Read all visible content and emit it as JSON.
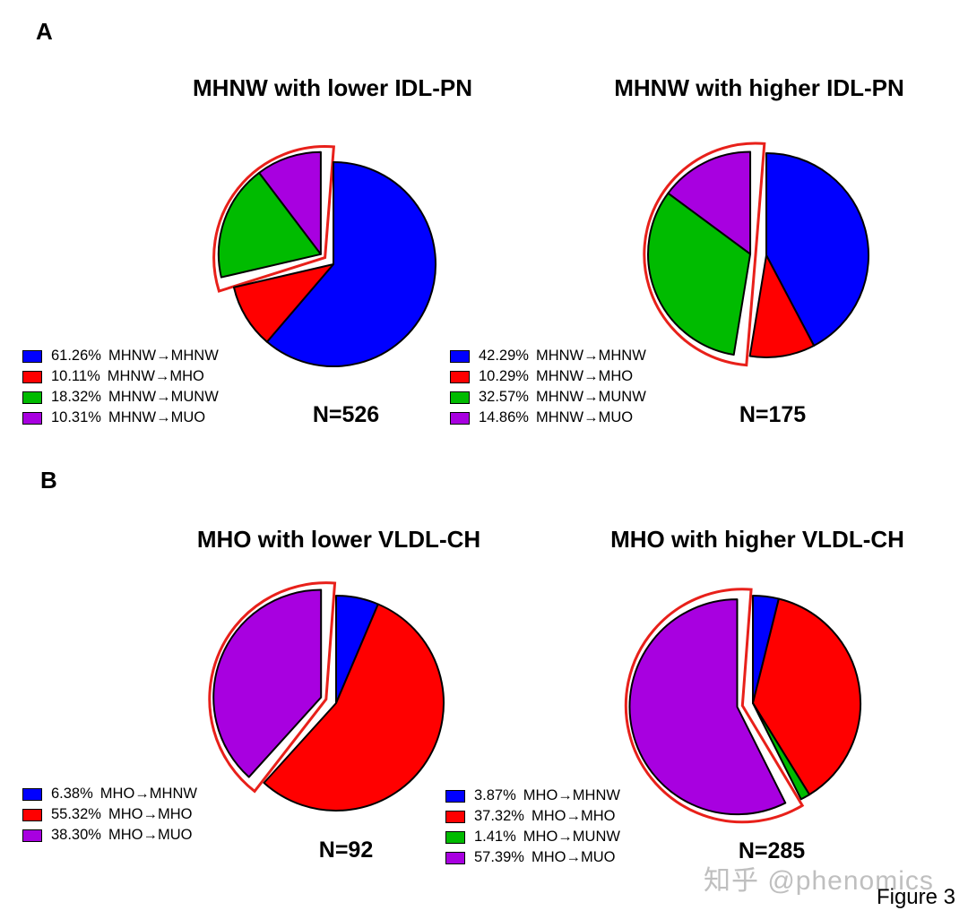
{
  "panels": [
    {
      "label": "A"
    },
    {
      "label": "B"
    }
  ],
  "chart_data": [
    {
      "type": "pie",
      "title": "MHNW with lower IDL-PN",
      "n_label": "N=526",
      "slices": [
        {
          "pct": "61.26%",
          "label": "MHNW→MHNW",
          "value": 61.26,
          "color": "#0000ff",
          "highlighted": false
        },
        {
          "pct": "10.11%",
          "label": "MHNW→MHO",
          "value": 10.11,
          "color": "#ff0000",
          "highlighted": false
        },
        {
          "pct": "18.32%",
          "label": "MHNW→MUNW",
          "value": 18.32,
          "color": "#00bb00",
          "highlighted": true
        },
        {
          "pct": "10.31%",
          "label": "MHNW→MUO",
          "value": 10.31,
          "color": "#a800e0",
          "highlighted": true
        }
      ]
    },
    {
      "type": "pie",
      "title": "MHNW with higher IDL-PN",
      "n_label": "N=175",
      "slices": [
        {
          "pct": "42.29%",
          "label": "MHNW→MHNW",
          "value": 42.29,
          "color": "#0000ff",
          "highlighted": false
        },
        {
          "pct": "10.29%",
          "label": "MHNW→MHO",
          "value": 10.29,
          "color": "#ff0000",
          "highlighted": false
        },
        {
          "pct": "32.57%",
          "label": "MHNW→MUNW",
          "value": 32.57,
          "color": "#00bb00",
          "highlighted": true
        },
        {
          "pct": "14.86%",
          "label": "MHNW→MUO",
          "value": 14.86,
          "color": "#a800e0",
          "highlighted": true
        }
      ]
    },
    {
      "type": "pie",
      "title": "MHO with lower VLDL-CH",
      "n_label": "N=92",
      "slices": [
        {
          "pct": "6.38%",
          "label": "MHO→MHNW",
          "value": 6.38,
          "color": "#0000ff",
          "highlighted": false
        },
        {
          "pct": "55.32%",
          "label": "MHO→MHO",
          "value": 55.32,
          "color": "#ff0000",
          "highlighted": false
        },
        {
          "pct": "38.30%",
          "label": "MHO→MUO",
          "value": 38.3,
          "color": "#a800e0",
          "highlighted": true
        }
      ]
    },
    {
      "type": "pie",
      "title": "MHO with higher VLDL-CH",
      "n_label": "N=285",
      "slices": [
        {
          "pct": "3.87%",
          "label": "MHO→MHNW",
          "value": 3.87,
          "color": "#0000ff",
          "highlighted": false
        },
        {
          "pct": "37.32%",
          "label": "MHO→MHO",
          "value": 37.32,
          "color": "#ff0000",
          "highlighted": false
        },
        {
          "pct": "1.41%",
          "label": "MHO→MUNW",
          "value": 1.41,
          "color": "#00bb00",
          "highlighted": false
        },
        {
          "pct": "57.39%",
          "label": "MHO→MUO",
          "value": 57.39,
          "color": "#a800e0",
          "highlighted": true
        }
      ]
    }
  ],
  "watermark": "知乎 @phenomics",
  "figure_label": "Figure 3"
}
